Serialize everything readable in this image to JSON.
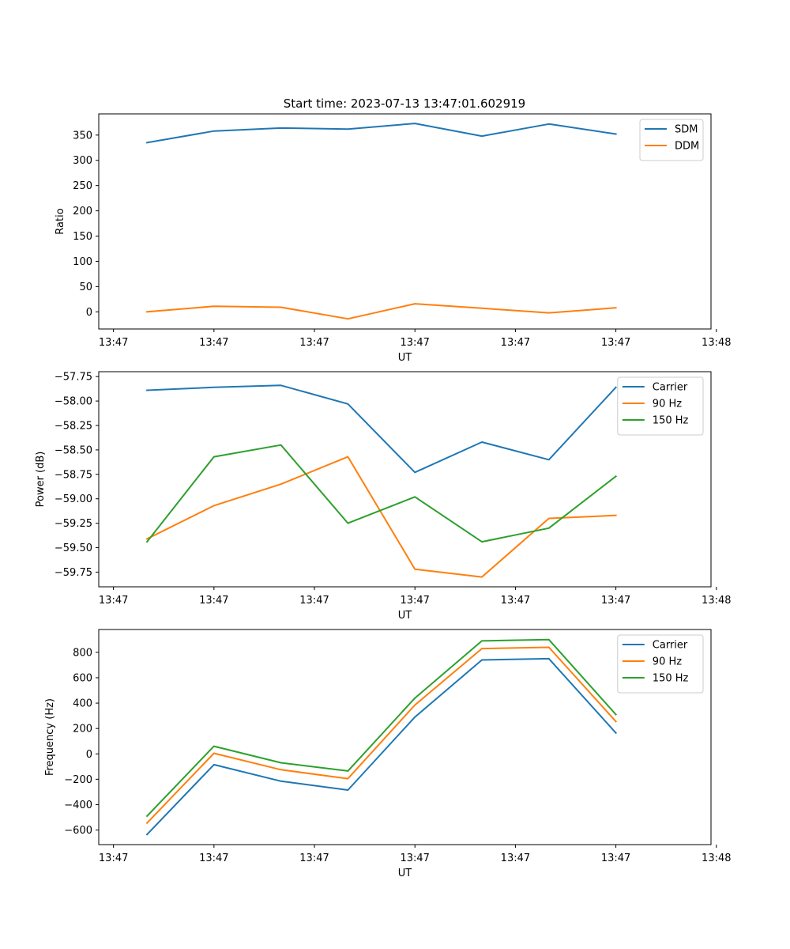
{
  "figure_title": "Start time: 2023-07-13 13:47:01.602919",
  "colors": {
    "blue": "#1f77b4",
    "orange": "#ff7f0e",
    "green": "#2ca02c"
  },
  "chart_data": [
    {
      "type": "line",
      "title": "Start time: 2023-07-13 13:47:01.602919",
      "xlabel": "UT",
      "ylabel": "Ratio",
      "x": [
        1,
        2,
        3,
        4,
        5,
        6,
        7,
        8
      ],
      "xlim": [
        0.28,
        9.42
      ],
      "xticks": [
        0.5,
        2.0,
        3.5,
        5.0,
        6.5,
        8.0,
        9.5
      ],
      "xticklabels": [
        "13:47",
        "13:47",
        "13:47",
        "13:47",
        "13:47",
        "13:47",
        "13:48"
      ],
      "ylim": [
        -34,
        392
      ],
      "yticks": [
        0,
        50,
        100,
        150,
        200,
        250,
        300,
        350
      ],
      "yticklabels": [
        "0",
        "50",
        "100",
        "150",
        "200",
        "250",
        "300",
        "350"
      ],
      "legend": "top-right",
      "series": [
        {
          "name": "SDM",
          "color": "#1f77b4",
          "values": [
            335,
            358,
            364,
            362,
            373,
            348,
            372,
            352
          ]
        },
        {
          "name": "DDM",
          "color": "#ff7f0e",
          "values": [
            0,
            11,
            9,
            -14,
            16,
            7,
            -2,
            8
          ]
        }
      ]
    },
    {
      "type": "line",
      "title": "",
      "xlabel": "UT",
      "ylabel": "Power (dB)",
      "x": [
        1,
        2,
        3,
        4,
        5,
        6,
        7,
        8
      ],
      "xlim": [
        0.28,
        9.42
      ],
      "xticks": [
        0.5,
        2.0,
        3.5,
        5.0,
        6.5,
        8.0,
        9.5
      ],
      "xticklabels": [
        "13:47",
        "13:47",
        "13:47",
        "13:47",
        "13:47",
        "13:47",
        "13:48"
      ],
      "ylim": [
        -59.9,
        -57.7
      ],
      "yticks": [
        -59.75,
        -59.5,
        -59.25,
        -59.0,
        -58.75,
        -58.5,
        -58.25,
        -58.0,
        -57.75
      ],
      "yticklabels": [
        "−59.75",
        "−59.50",
        "−59.25",
        "−59.00",
        "−58.75",
        "−58.50",
        "−58.25",
        "−58.00",
        "−57.75"
      ],
      "legend": "top-right",
      "series": [
        {
          "name": "Carrier",
          "color": "#1f77b4",
          "values": [
            -57.89,
            -57.86,
            -57.84,
            -58.03,
            -58.73,
            -58.42,
            -58.6,
            -57.86
          ]
        },
        {
          "name": "90 Hz",
          "color": "#ff7f0e",
          "values": [
            -59.41,
            -59.07,
            -58.85,
            -58.57,
            -59.72,
            -59.8,
            -59.2,
            -59.17
          ]
        },
        {
          "name": "150 Hz",
          "color": "#2ca02c",
          "values": [
            -59.44,
            -58.57,
            -58.45,
            -59.25,
            -58.98,
            -59.44,
            -59.3,
            -58.77
          ]
        }
      ]
    },
    {
      "type": "line",
      "title": "",
      "xlabel": "UT",
      "ylabel": "Frequency (Hz)",
      "x": [
        1,
        2,
        3,
        4,
        5,
        6,
        7,
        8
      ],
      "xlim": [
        0.28,
        9.42
      ],
      "xticks": [
        0.5,
        2.0,
        3.5,
        5.0,
        6.5,
        8.0,
        9.5
      ],
      "xticklabels": [
        "13:47",
        "13:47",
        "13:47",
        "13:47",
        "13:47",
        "13:47",
        "13:48"
      ],
      "ylim": [
        -715,
        980
      ],
      "yticks": [
        -600,
        -400,
        -200,
        0,
        200,
        400,
        600,
        800
      ],
      "yticklabels": [
        "−600",
        "−400",
        "−200",
        "0",
        "200",
        "400",
        "600",
        "800"
      ],
      "legend": "top-right",
      "series": [
        {
          "name": "Carrier",
          "color": "#1f77b4",
          "values": [
            -635,
            -85,
            -215,
            -285,
            290,
            740,
            750,
            165
          ]
        },
        {
          "name": "90 Hz",
          "color": "#ff7f0e",
          "values": [
            -545,
            5,
            -125,
            -195,
            385,
            830,
            840,
            255
          ]
        },
        {
          "name": "150 Hz",
          "color": "#2ca02c",
          "values": [
            -490,
            60,
            -70,
            -135,
            440,
            890,
            900,
            310
          ]
        }
      ]
    }
  ]
}
